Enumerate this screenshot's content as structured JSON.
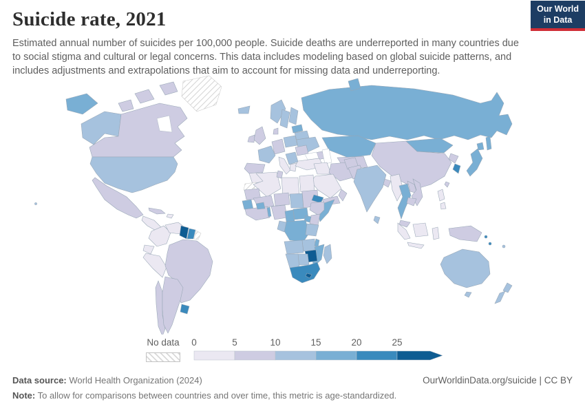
{
  "header": {
    "title": "Suicide rate, 2021",
    "subtitle": "Estimated annual number of suicides per 100,000 people. Suicide deaths are underreported in many countries due to social stigma and cultural or legal concerns. This data includes modeling based on global suicide patterns, and includes adjustments and extrapolations that aim to account for missing data and underreporting."
  },
  "logo": {
    "line1": "Our World",
    "line2": "in Data"
  },
  "legend": {
    "no_data_label": "No data"
  },
  "footer": {
    "source_label": "Data source:",
    "source_text": "World Health Organization (2024)",
    "note_label": "Note:",
    "note_text": "To allow for comparisons between countries and over time, this metric is age-standardized.",
    "link": "OurWorldinData.org/suicide | CC BY"
  },
  "chart_data": {
    "type": "heatmap",
    "subtype": "world-choropleth",
    "title": "Suicide rate, 2021",
    "unit": "estimated suicides per 100,000 people (age-standardized)",
    "legend_ticks": [
      "0",
      "5",
      "10",
      "15",
      "20",
      "25"
    ],
    "bins": [
      {
        "label": "0-5",
        "color": "#ebe8f2"
      },
      {
        "label": "5-10",
        "color": "#cecce2"
      },
      {
        "label": "10-15",
        "color": "#a6c2de"
      },
      {
        "label": "15-20",
        "color": "#79afd4"
      },
      {
        "label": "20-25",
        "color": "#3a8abd"
      },
      {
        "label": "25+",
        "color": "#0e5c92"
      }
    ],
    "no_data_style": "diagonal-hatch",
    "ocean_color": "#ffffff",
    "border_color": "#97a6b5",
    "countries": {
      "greenland": "no-data",
      "western-sahara": "no-data",
      "french-guiana": "no-data",
      "colombia": "0-5",
      "venezuela": "0-5",
      "ecuador": "0-5",
      "peru": "0-5",
      "central-america": "0-5",
      "caribbean": "0-5",
      "morocco": "0-5",
      "algeria": "0-5",
      "libya": "0-5",
      "egypt": "0-5",
      "turkey": "0-5",
      "iraq": "0-5",
      "saudi-arabia": "0-5",
      "italy": "0-5",
      "greece": "0-5",
      "myanmar": "0-5",
      "indonesia": "0-5",
      "philippines": "0-5",
      "canada": "5-10",
      "mexico": "5-10",
      "cuba": "5-10",
      "brazil": "5-10",
      "argentina": "5-10",
      "chile": "5-10",
      "united-kingdom": "5-10",
      "ireland": "5-10",
      "denmark": "5-10",
      "germany": "5-10",
      "spain": "5-10",
      "romania": "5-10",
      "tunisia": "5-10",
      "mauritania": "5-10",
      "mali": "5-10",
      "niger": "5-10",
      "sudan": "5-10",
      "nigeria": "5-10",
      "ghana": "5-10",
      "ethiopia": "5-10",
      "kenya": "5-10",
      "yemen": "5-10",
      "oman": "5-10",
      "iran": "5-10",
      "afghanistan": "5-10",
      "pakistan": "5-10",
      "uzbekistan": "5-10",
      "georgia": "5-10",
      "china": "5-10",
      "north-korea": "5-10",
      "laos": "5-10",
      "vietnam": "5-10",
      "cambodia": "5-10",
      "malaysia": "5-10",
      "bangladesh": "5-10",
      "taiwan": "5-10",
      "papua-new-guinea": "5-10",
      "united-states": "10-15",
      "iceland": "10-15",
      "norway": "10-15",
      "sweden": "10-15",
      "finland": "10-15",
      "france": "10-15",
      "poland": "10-15",
      "serbia": "10-15",
      "ukraine": "10-15",
      "belarus": "10-15",
      "india": "10-15",
      "sri-lanka": "10-15",
      "chad": "10-15",
      "gabon": "10-15",
      "tanzania": "10-15",
      "angola": "10-15",
      "zambia": "10-15",
      "namibia": "10-15",
      "botswana": "10-15",
      "madagascar": "10-15",
      "australia": "10-15",
      "new-zealand": "10-15",
      "fiji": "10-15",
      "russia": "15-20",
      "kazakhstan": "15-20",
      "mongolia": "15-20",
      "japan": "15-20",
      "thailand": "15-20",
      "baltic-states": "15-20",
      "guinea": "15-20",
      "burkina-faso": "15-20",
      "benin": "15-20",
      "cameroon": "15-20",
      "central-african-republic": "15-20",
      "somalia": "15-20",
      "uganda": "15-20",
      "democratic-republic-of-congo": "15-20",
      "malawi": "15-20",
      "mozambique": "15-20",
      "south-korea": "20-25",
      "uruguay": "20-25",
      "suriname": "20-25",
      "eritrea": "20-25",
      "south-africa": "20-25",
      "solomon-islands": "20-25",
      "vanuatu": "20-25",
      "guyana": "25+",
      "zimbabwe": "25+",
      "lesotho": "25+"
    }
  }
}
